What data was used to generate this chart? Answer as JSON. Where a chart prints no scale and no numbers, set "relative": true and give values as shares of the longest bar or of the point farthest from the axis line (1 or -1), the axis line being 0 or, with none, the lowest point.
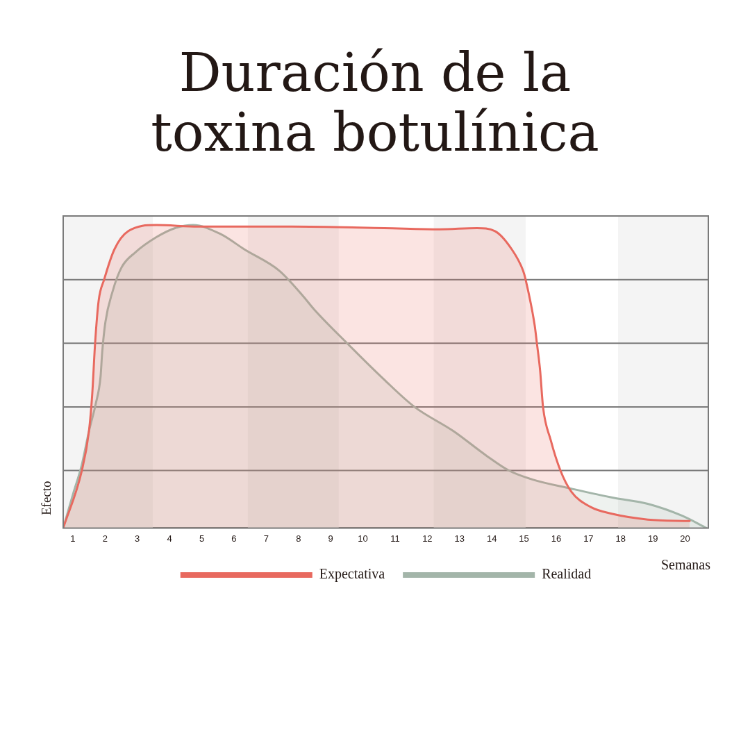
{
  "chart_data": {
    "type": "area",
    "title": "Duración de la toxina botulínica",
    "xlabel": "Semanas",
    "ylabel": "Efecto",
    "relative": true,
    "xlim": [
      0.7,
      20.72
    ],
    "xticks": [
      1,
      2,
      3,
      4,
      5,
      6,
      7,
      8,
      9,
      10,
      11,
      12,
      13,
      14,
      15,
      16,
      17,
      18,
      19,
      20
    ],
    "legend": "bottom",
    "grid": false,
    "ref_lines": [
      {
        "axis": "y",
        "value": 0.19,
        "color": "#7a7a7a"
      },
      {
        "axis": "y",
        "value": 0.4,
        "color": "#7a7a7a"
      },
      {
        "axis": "y",
        "value": 0.61,
        "color": "#7a7a7a"
      },
      {
        "axis": "y",
        "value": 0.82,
        "color": "#7a7a7a"
      }
    ],
    "bands": [
      {
        "axis": "x",
        "from": 0.7,
        "to": 3.48,
        "color": "#f4f4f4"
      },
      {
        "axis": "x",
        "from": 6.43,
        "to": 9.25,
        "color": "#f4f4f4"
      },
      {
        "axis": "x",
        "from": 12.2,
        "to": 15.05,
        "color": "#f4f4f4"
      },
      {
        "axis": "x",
        "from": 17.92,
        "to": 20.72,
        "color": "#f4f4f4"
      }
    ],
    "series": [
      {
        "name": "Expectativa",
        "color": "#e8695f",
        "x": [
          0.7,
          1.28,
          1.5,
          1.6,
          1.69,
          1.8,
          1.97,
          2.29,
          2.72,
          3.59,
          4.88,
          7.79,
          10.66,
          12.38,
          13.54,
          14.1,
          14.62,
          14.97,
          15.05,
          15.33,
          15.4,
          15.5,
          15.59,
          15.83,
          16.13,
          16.47,
          17.06,
          17.77,
          18.84,
          20.14
        ],
        "values": [
          0,
          0.19,
          0.32,
          0.44,
          0.61,
          0.75,
          0.82,
          0.92,
          0.98,
          1.0,
          0.995,
          0.995,
          0.99,
          0.986,
          0.99,
          0.98,
          0.92,
          0.85,
          0.82,
          0.67,
          0.61,
          0.52,
          0.4,
          0.29,
          0.19,
          0.12,
          0.07,
          0.046,
          0.028,
          0.023
        ]
      },
      {
        "name": "Realidad",
        "color": "#a3b5a9",
        "x": [
          0.7,
          1.0,
          1.28,
          1.5,
          1.71,
          1.86,
          1.91,
          2.01,
          2.23,
          2.51,
          2.94,
          3.59,
          4.17,
          4.73,
          5.59,
          6.32,
          7.4,
          8.11,
          8.5,
          9.51,
          10.66,
          11.6,
          12.81,
          13.82,
          14.53,
          15.27,
          16.47,
          17.77,
          18.84,
          19.92,
          20.66
        ],
        "values": [
          0,
          0.11,
          0.21,
          0.32,
          0.41,
          0.5,
          0.58,
          0.68,
          0.78,
          0.86,
          0.91,
          0.96,
          0.99,
          1.0,
          0.97,
          0.92,
          0.85,
          0.77,
          0.72,
          0.61,
          0.49,
          0.4,
          0.32,
          0.24,
          0.19,
          0.16,
          0.13,
          0.1,
          0.08,
          0.04,
          0
        ]
      }
    ]
  }
}
